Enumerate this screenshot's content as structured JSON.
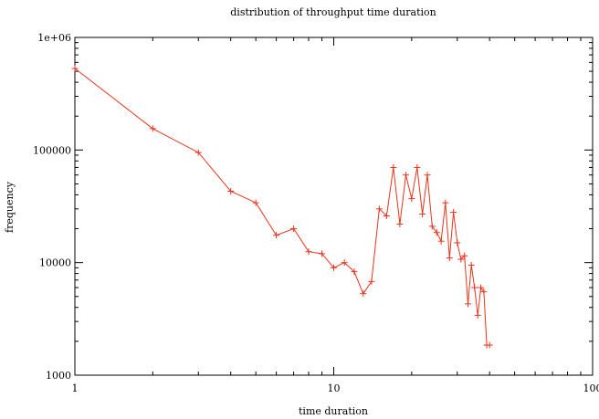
{
  "chart_data": {
    "type": "line",
    "title": "distribution of throughput time duration",
    "xlabel": "time duration",
    "ylabel": "frequency",
    "x_scale": "log",
    "y_scale": "log",
    "xlim": [
      1,
      100
    ],
    "ylim": [
      1000,
      1000000
    ],
    "x_ticks": [
      {
        "value": 1,
        "label": "1"
      },
      {
        "value": 10,
        "label": "10"
      },
      {
        "value": 100,
        "label": "100"
      }
    ],
    "y_ticks": [
      {
        "value": 1000,
        "label": "1000"
      },
      {
        "value": 10000,
        "label": "10000"
      },
      {
        "value": 100000,
        "label": "100000"
      },
      {
        "value": 1000000,
        "label": "1e+06"
      }
    ],
    "grid": false,
    "legend": "none",
    "line_color": "#e8341c",
    "marker": "plus",
    "series": [
      {
        "x": [
          1,
          2,
          3,
          4,
          5,
          6,
          7,
          8,
          9,
          10,
          11,
          12,
          13,
          14,
          15,
          16,
          17,
          18,
          19,
          20,
          21,
          22,
          23,
          24,
          25,
          26,
          27,
          28,
          29,
          30,
          31,
          32,
          33,
          34,
          35,
          36,
          37,
          38,
          39,
          40
        ],
        "y": [
          530000,
          155000,
          95000,
          43000,
          34000,
          17500,
          20000,
          12500,
          12000,
          9000,
          10000,
          8300,
          5300,
          6800,
          30000,
          26000,
          70000,
          22000,
          60000,
          37000,
          70000,
          27000,
          60000,
          21000,
          18500,
          15500,
          34000,
          11000,
          28000,
          15000,
          10700,
          11500,
          4300,
          9500,
          6000,
          3400,
          6000,
          5500,
          1850,
          1850
        ]
      }
    ]
  }
}
